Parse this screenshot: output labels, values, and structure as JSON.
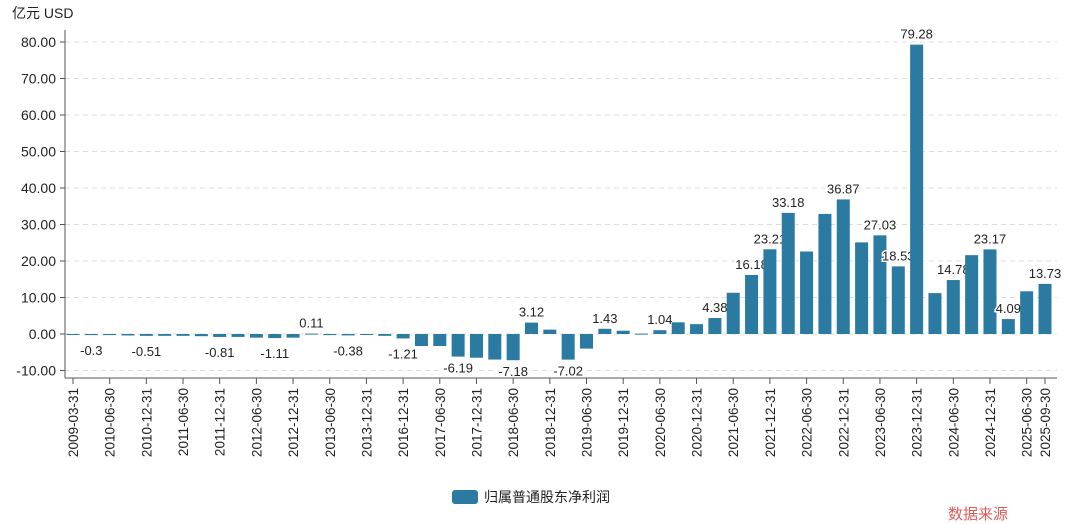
{
  "chart_data": {
    "type": "bar",
    "unit_label": "亿元  USD",
    "ylim": [
      -10,
      80
    ],
    "yticks": [
      "80.00",
      "70.00",
      "60.00",
      "50.00",
      "40.00",
      "30.00",
      "20.00",
      "10.00",
      "0.00",
      "-10.00"
    ],
    "grid": true,
    "legend_position": "bottom",
    "bar_color": "#2b7aa1",
    "categories": [
      "2009-03-31",
      "",
      "2010-06-30",
      "",
      "2010-12-31",
      "",
      "2011-06-30",
      "",
      "2011-12-31",
      "",
      "2012-06-30",
      "",
      "2012-12-31",
      "",
      "2013-06-30",
      "",
      "2013-12-31",
      "",
      "2016-12-31",
      "",
      "2017-06-30",
      "",
      "2017-12-31",
      "",
      "2018-06-30",
      "",
      "2018-12-31",
      "",
      "2019-06-30",
      "",
      "2019-12-31",
      "",
      "2020-06-30",
      "",
      "2020-12-31",
      "",
      "2021-06-30",
      "",
      "2021-12-31",
      "",
      "2022-06-30",
      "",
      "2022-12-31",
      "",
      "2023-06-30",
      "",
      "2023-12-31",
      "",
      "2024-06-30",
      "",
      "2024-12-31",
      "",
      "2025-06-30",
      "2025-09-30"
    ],
    "series": [
      {
        "name": "归属普通股东净利润",
        "values": [
          -0.1,
          -0.3,
          -0.3,
          -0.4,
          -0.51,
          -0.5,
          -0.5,
          -0.6,
          -0.81,
          -0.8,
          -1.0,
          -1.11,
          -1.0,
          0.11,
          -0.3,
          -0.38,
          -0.2,
          -0.5,
          -1.21,
          -3.3,
          -3.3,
          -6.19,
          -6.5,
          -7.0,
          -7.18,
          3.12,
          1.2,
          -7.02,
          -4.0,
          1.43,
          0.9,
          0.1,
          1.04,
          3.2,
          2.7,
          4.38,
          11.3,
          16.18,
          23.21,
          33.18,
          22.6,
          32.9,
          36.87,
          25.1,
          27.03,
          18.53,
          79.28,
          11.2,
          14.78,
          21.6,
          23.17,
          4.09,
          11.7,
          13.73
        ],
        "data_labels": {
          "1": "-0.3",
          "4": "-0.51",
          "8": "-0.81",
          "11": "-1.11",
          "13": "0.11",
          "15": "-0.38",
          "18": "-1.21",
          "21": "-6.19",
          "24": "-7.18",
          "25": "3.12",
          "27": "-7.02",
          "29": "1.43",
          "32": "1.04",
          "35": "4.38",
          "37": "16.18",
          "38": "23.21",
          "39": "33.18",
          "42": "36.87",
          "44": "27.03",
          "45": "18.53",
          "46": "79.28",
          "48": "14.78",
          "50": "23.17",
          "51": "4.09",
          "53": "13.73"
        }
      }
    ]
  },
  "watermark": "数据来源"
}
